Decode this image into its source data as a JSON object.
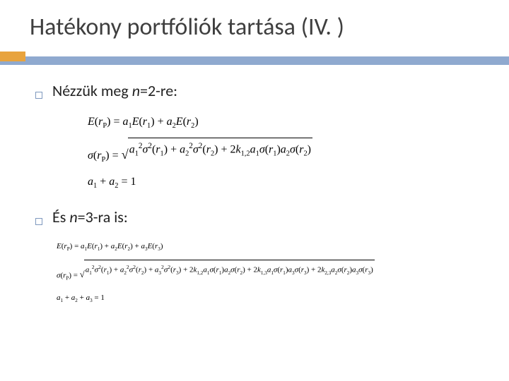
{
  "slide": {
    "title": "Hatékony portfóliók tartása (IV. )",
    "bullet1_prefix": "Nézzük meg ",
    "bullet1_n": "n",
    "bullet1_suffix": "=2-re:",
    "bullet2_prefix": "És ",
    "bullet2_n": "n",
    "bullet2_suffix": "=3-ra is:",
    "colors": {
      "band_orange": "#e8a33d",
      "band_blue": "#8fa9cf",
      "title_color": "#3f3f3f"
    },
    "math_n2": {
      "eq1": "E(r_P) = a_1 E(r_1) + a_2 E(r_2)",
      "eq2": "σ(r_P) = sqrt( a_1^2 σ^2(r_1) + a_2^2 σ^2(r_2) + 2 k_{1,2} a_1 σ(r_1) a_2 σ(r_2) )",
      "eq3": "a_1 + a_2 = 1"
    },
    "math_n3": {
      "eq1": "E(r_P) = a_1 E(r_1) + a_2 E(r_2) + a_3 E(r_3)",
      "eq2": "σ(r_P) = sqrt( a_1^2 σ^2(r_1) + a_2^2 σ^2(r_2) + a_3^2 σ^2(r_3) + 2 k_{1,2} a_1 σ(r_1) a_2 σ(r_2) + 2 k_{1,3} a_1 σ(r_1) a_3 σ(r_3) + 2 k_{2,3} a_2 σ(r_2) a_3 σ(r_3) )",
      "eq3": "a_1 + a_2 + a_3 = 1"
    }
  }
}
